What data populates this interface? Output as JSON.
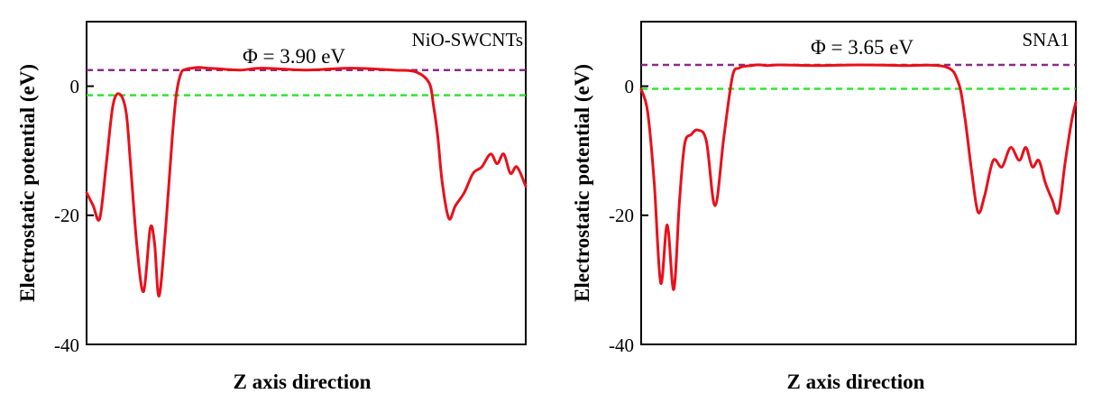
{
  "chart_data": [
    {
      "type": "line",
      "title": "NiO-SWCNTs",
      "annotation": "Φ = 3.90 eV",
      "xlabel": "Z axis direction",
      "ylabel": "Electrostatic potential (eV)",
      "ylim": [
        -40,
        10
      ],
      "xlim": [
        0,
        1
      ],
      "yticks": [
        0,
        -20,
        -40
      ],
      "ytick_labels": [
        "0",
        "-20",
        "-40"
      ],
      "vacuum_level": 2.5,
      "fermi_level": -1.4,
      "colors": {
        "curve": "#e8101a",
        "vacuum": "#8b2a8b",
        "fermi": "#2ee82e"
      },
      "series": [
        {
          "name": "potential",
          "x": [
            0.0,
            0.015,
            0.03,
            0.045,
            0.06,
            0.075,
            0.09,
            0.1,
            0.115,
            0.13,
            0.145,
            0.155,
            0.165,
            0.18,
            0.195,
            0.205,
            0.215,
            0.225,
            0.24,
            0.255,
            0.275,
            0.3,
            0.35,
            0.4,
            0.5,
            0.6,
            0.7,
            0.75,
            0.78,
            0.79,
            0.8,
            0.81,
            0.825,
            0.84,
            0.86,
            0.88,
            0.9,
            0.92,
            0.935,
            0.95,
            0.965,
            0.98,
            1.0
          ],
          "values": [
            -16.5,
            -18.5,
            -20.5,
            -12.0,
            -3.0,
            -1.2,
            -4.0,
            -12.0,
            -25.0,
            -31.8,
            -22.0,
            -24.5,
            -32.5,
            -22.0,
            -8.0,
            -1.0,
            2.0,
            2.6,
            2.8,
            2.9,
            2.8,
            2.7,
            2.5,
            2.8,
            2.5,
            2.8,
            2.5,
            2.2,
            0.5,
            -3.0,
            -8.0,
            -15.0,
            -20.5,
            -18.5,
            -16.5,
            -13.5,
            -12.5,
            -10.5,
            -12.0,
            -10.5,
            -13.5,
            -12.5,
            -15.5
          ]
        }
      ]
    },
    {
      "type": "line",
      "title": "SNA1",
      "annotation": "Φ = 3.65 eV",
      "xlabel": "Z axis direction",
      "ylabel": "Electrostatic potential (eV)",
      "ylim": [
        -40,
        10
      ],
      "xlim": [
        0,
        1
      ],
      "yticks": [
        0,
        -20,
        -40
      ],
      "ytick_labels": [
        "0",
        "-20",
        "-40"
      ],
      "vacuum_level": 3.3,
      "fermi_level": -0.4,
      "colors": {
        "curve": "#e8101a",
        "vacuum": "#8b2a8b",
        "fermi": "#2ee82e"
      },
      "series": [
        {
          "name": "potential",
          "x": [
            0.0,
            0.015,
            0.03,
            0.045,
            0.06,
            0.075,
            0.088,
            0.1,
            0.115,
            0.13,
            0.15,
            0.17,
            0.19,
            0.21,
            0.225,
            0.24,
            0.255,
            0.265,
            0.275,
            0.29,
            0.32,
            0.4,
            0.5,
            0.6,
            0.7,
            0.73,
            0.745,
            0.76,
            0.775,
            0.79,
            0.81,
            0.83,
            0.85,
            0.87,
            0.885,
            0.9,
            0.915,
            0.93,
            0.945,
            0.96,
            0.975,
            0.99,
            1.0
          ],
          "values": [
            -0.5,
            -4.0,
            -15.0,
            -30.5,
            -21.5,
            -31.5,
            -18.0,
            -9.0,
            -7.5,
            -6.8,
            -8.5,
            -18.5,
            -8.0,
            1.5,
            2.8,
            3.1,
            3.2,
            3.3,
            3.3,
            3.2,
            3.3,
            3.2,
            3.3,
            3.2,
            3.0,
            0.5,
            -5.0,
            -13.0,
            -19.5,
            -17.0,
            -11.5,
            -12.5,
            -9.5,
            -11.5,
            -9.5,
            -12.5,
            -11.5,
            -15.0,
            -17.5,
            -19.5,
            -12.0,
            -5.5,
            -2.5
          ]
        }
      ]
    }
  ]
}
